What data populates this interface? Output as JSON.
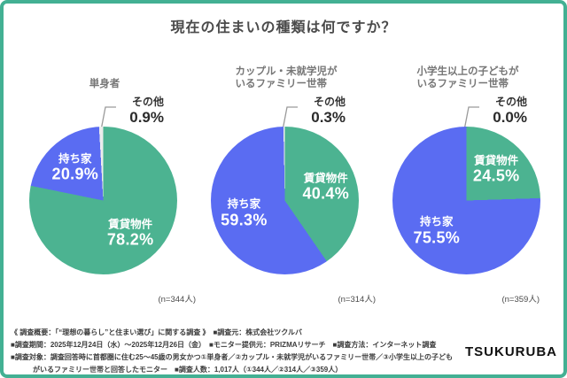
{
  "page_title": "現在の住まいの種類は何ですか？",
  "theme": {
    "frame_color": "#43B093",
    "rent_green": "#4CB391",
    "own_blue": "#5A6CF2",
    "other_gray": "#ECECEC",
    "leader_line_gray": "#9a9a9a"
  },
  "chart_data": [
    {
      "type": "pie",
      "title": "単身者",
      "n_label": "(n=344人)",
      "legend_position": "inside",
      "slices": [
        {
          "name": "賃貸物件",
          "value": 78.2,
          "pct_label": "78.2%",
          "color": "#4CB391"
        },
        {
          "name": "持ち家",
          "value": 20.9,
          "pct_label": "20.9%",
          "color": "#5A6CF2"
        },
        {
          "name": "その他",
          "value": 0.9,
          "pct_label": "0.9%",
          "color": "#ECECEC"
        }
      ]
    },
    {
      "type": "pie",
      "title": "カップル・未就学児が\nいるファミリー世帯",
      "n_label": "(n=314人)",
      "legend_position": "inside",
      "slices": [
        {
          "name": "賃貸物件",
          "value": 40.4,
          "pct_label": "40.4%",
          "color": "#4CB391"
        },
        {
          "name": "持ち家",
          "value": 59.3,
          "pct_label": "59.3%",
          "color": "#5A6CF2"
        },
        {
          "name": "その他",
          "value": 0.3,
          "pct_label": "0.3%",
          "color": "#ECECEC"
        }
      ]
    },
    {
      "type": "pie",
      "title": "小学生以上の子どもが\nいるファミリー世帯",
      "n_label": "(n=359人)",
      "legend_position": "inside",
      "slices": [
        {
          "name": "賃貸物件",
          "value": 24.5,
          "pct_label": "24.5%",
          "color": "#4CB391"
        },
        {
          "name": "持ち家",
          "value": 75.5,
          "pct_label": "75.5%",
          "color": "#5A6CF2"
        },
        {
          "name": "その他",
          "value": 0.0,
          "pct_label": "0.0%",
          "color": "#ECECEC"
        }
      ]
    }
  ],
  "footer": {
    "lines": [
      "《 調査概要：「“理想の暮らし”と住まい選び」に関する調査 》　■調査元：株式会社ツクルバ",
      "■調査期間：2025年12月24日（水）～2025年12月26日（金）　■モニター提供元：PRIZMAリサーチ　■調査方法：インターネット調査",
      "■調査対象：調査回答時に首都圏に住む25～45歳の男女かつ①単身者／②カップル・未就学児がいるファミリー世帯／③小学生以上の子ども",
      "がいるファミリー世帯と回答したモニター　■調査人数：1,017人（①344人／②314人／③359人）"
    ]
  },
  "logo_text": "TSUKURUBA"
}
